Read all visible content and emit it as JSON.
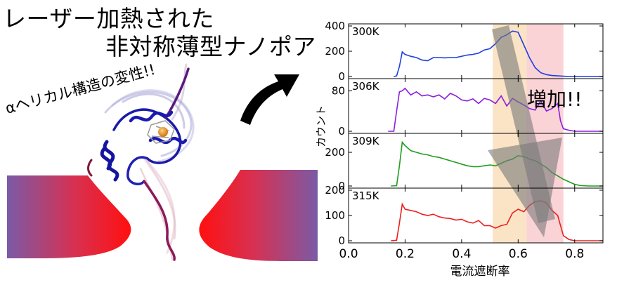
{
  "title": {
    "line1": "レーザー加熱された",
    "line2": "非対称薄型ナノポア"
  },
  "left_panel": {
    "protein_annotation": "αヘリカル構造の変性!!"
  },
  "right_panel": {
    "increase_label": "増加!!",
    "highlight_colors": {
      "orange_band": "#fbe3c6",
      "pink_band": "#f9d3d6"
    }
  },
  "chart_data": {
    "type": "line",
    "xlabel": "電流遮断率",
    "ylabel": "カウント",
    "xlim": [
      0.0,
      0.9
    ],
    "x_ticks": [
      "0.0",
      "0.2",
      "0.4",
      "0.6",
      "0.8"
    ],
    "shaded_regions": [
      {
        "x_range": [
          0.51,
          0.63
        ],
        "color": "#fbe3c6"
      },
      {
        "x_range": [
          0.63,
          0.76
        ],
        "color": "#f9d3d6"
      }
    ],
    "panels": [
      {
        "label": "300K",
        "color": "#1f3fe0",
        "ylim": [
          0,
          400
        ],
        "y_ticks": [
          "0",
          "200",
          "400"
        ],
        "x": [
          0.16,
          0.17,
          0.18,
          0.19,
          0.2,
          0.22,
          0.24,
          0.26,
          0.28,
          0.3,
          0.32,
          0.34,
          0.36,
          0.38,
          0.4,
          0.42,
          0.44,
          0.46,
          0.48,
          0.5,
          0.52,
          0.54,
          0.56,
          0.58,
          0.6,
          0.62,
          0.64,
          0.66,
          0.68,
          0.7,
          0.72,
          0.74,
          0.76,
          0.78,
          0.8,
          0.85,
          0.9
        ],
        "y": [
          0,
          5,
          80,
          195,
          175,
          160,
          150,
          130,
          125,
          150,
          150,
          148,
          150,
          150,
          160,
          170,
          175,
          185,
          210,
          220,
          260,
          310,
          330,
          360,
          350,
          250,
          150,
          70,
          30,
          15,
          8,
          5,
          2,
          0,
          0,
          0,
          0
        ]
      },
      {
        "label": "306K",
        "color": "#8a1fe0",
        "ylim": [
          0,
          100
        ],
        "y_ticks": [
          "0",
          "80"
        ],
        "x": [
          0.14,
          0.16,
          0.17,
          0.18,
          0.19,
          0.2,
          0.21,
          0.22,
          0.24,
          0.26,
          0.28,
          0.3,
          0.32,
          0.34,
          0.36,
          0.38,
          0.4,
          0.42,
          0.44,
          0.46,
          0.48,
          0.5,
          0.52,
          0.54,
          0.56,
          0.58,
          0.6,
          0.62,
          0.64,
          0.66,
          0.68,
          0.7,
          0.72,
          0.74,
          0.75,
          0.76,
          0.78,
          0.8,
          0.85,
          0.9
        ],
        "y": [
          0,
          0,
          40,
          78,
          80,
          85,
          78,
          72,
          78,
          70,
          72,
          68,
          72,
          64,
          75,
          70,
          62,
          60,
          64,
          55,
          65,
          62,
          55,
          70,
          50,
          65,
          58,
          52,
          45,
          42,
          60,
          40,
          45,
          55,
          20,
          5,
          2,
          0,
          0,
          0
        ]
      },
      {
        "label": "309K",
        "color": "#1f9e1f",
        "ylim": [
          0,
          300
        ],
        "y_ticks": [
          "0",
          "200"
        ],
        "x": [
          0.15,
          0.17,
          0.18,
          0.19,
          0.2,
          0.22,
          0.24,
          0.26,
          0.28,
          0.3,
          0.32,
          0.34,
          0.36,
          0.38,
          0.4,
          0.42,
          0.44,
          0.46,
          0.48,
          0.5,
          0.52,
          0.54,
          0.56,
          0.58,
          0.6,
          0.62,
          0.64,
          0.66,
          0.68,
          0.7,
          0.72,
          0.74,
          0.76,
          0.78,
          0.8,
          0.82,
          0.85,
          0.9
        ],
        "y": [
          0,
          2,
          120,
          260,
          240,
          210,
          200,
          190,
          185,
          175,
          170,
          160,
          150,
          140,
          130,
          120,
          115,
          115,
          120,
          125,
          120,
          135,
          150,
          160,
          180,
          175,
          160,
          150,
          130,
          110,
          80,
          60,
          40,
          25,
          10,
          3,
          0,
          0
        ]
      },
      {
        "label": "315K",
        "color": "#e8201f",
        "ylim": [
          0,
          200
        ],
        "y_ticks": [
          "0",
          "100",
          "200"
        ],
        "x": [
          0.15,
          0.17,
          0.18,
          0.19,
          0.2,
          0.22,
          0.24,
          0.26,
          0.28,
          0.3,
          0.32,
          0.34,
          0.36,
          0.38,
          0.4,
          0.42,
          0.44,
          0.46,
          0.48,
          0.5,
          0.52,
          0.54,
          0.56,
          0.58,
          0.6,
          0.62,
          0.64,
          0.66,
          0.68,
          0.7,
          0.72,
          0.74,
          0.76,
          0.78,
          0.8,
          0.85,
          0.9
        ],
        "y": [
          0,
          2,
          70,
          145,
          125,
          120,
          115,
          105,
          100,
          105,
          95,
          90,
          88,
          82,
          85,
          75,
          70,
          80,
          60,
          60,
          50,
          60,
          65,
          110,
          125,
          115,
          140,
          155,
          158,
          150,
          120,
          100,
          20,
          5,
          0,
          0,
          0
        ]
      }
    ]
  }
}
